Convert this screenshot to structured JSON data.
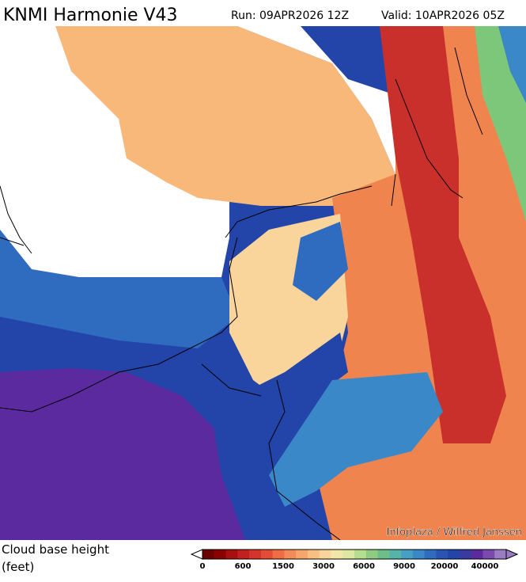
{
  "header": {
    "title": "KNMI Harmonie V43",
    "run": "Run: 09APR2026 12Z",
    "valid": "Valid: 10APR2026 05Z"
  },
  "credit": "Infoplaza / Wilfred Janssen",
  "legend": {
    "title": "Cloud base height",
    "unit": "(feet)",
    "ticks": [
      0,
      600,
      1500,
      3000,
      6000,
      9000,
      20000,
      40000
    ],
    "colors": [
      "#6b0000",
      "#8b0000",
      "#a80f0f",
      "#c21f1f",
      "#d6332c",
      "#e44d35",
      "#ee6d45",
      "#f38b58",
      "#f6a66b",
      "#f8bf82",
      "#f9d59c",
      "#f2e6a8",
      "#dde9a0",
      "#b7dd8f",
      "#8fcc80",
      "#6dbf8a",
      "#55b3a8",
      "#45a0c4",
      "#3a88c8",
      "#2f6cc0",
      "#2a54b3",
      "#2344a8",
      "#3a3aa0",
      "#5a2a9e",
      "#7a4aae",
      "#9b7bc4"
    ]
  }
}
